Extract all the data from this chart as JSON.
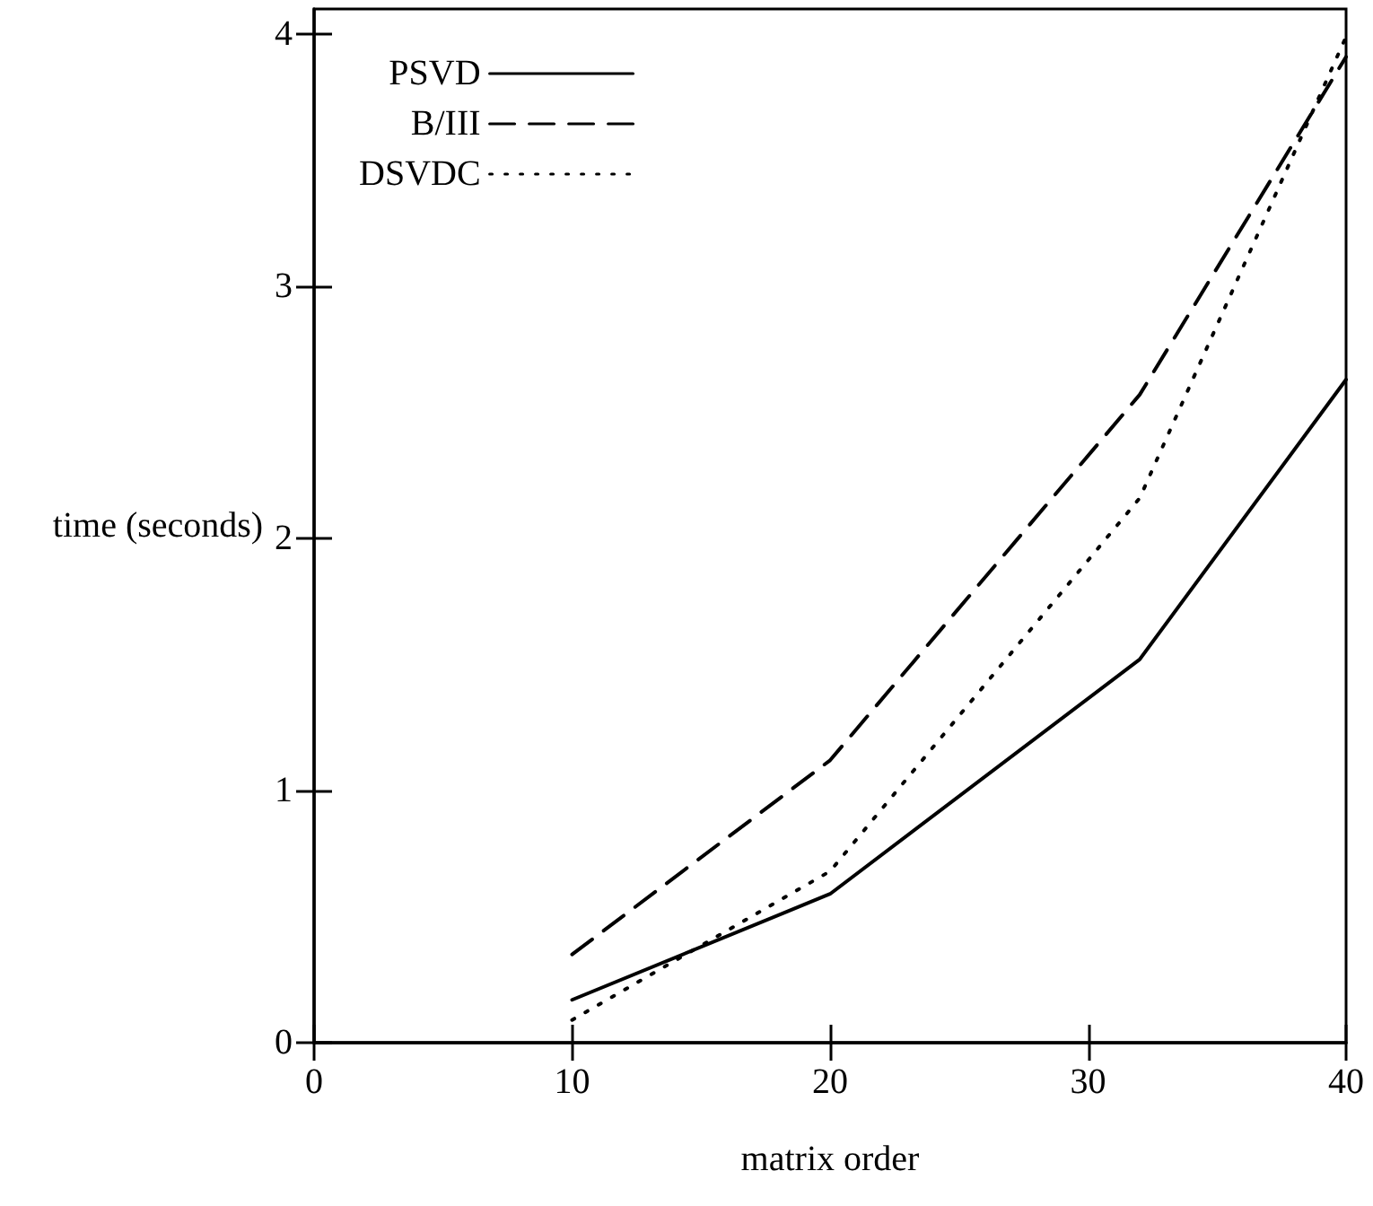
{
  "chart_data": {
    "type": "line",
    "xlabel": "matrix order",
    "ylabel": "time (seconds)",
    "xlim": [
      0,
      40
    ],
    "xticks": [
      0,
      10,
      20,
      30,
      40
    ],
    "ylim": [
      0,
      4.1
    ],
    "yticks": [
      0,
      1,
      2,
      3,
      4
    ],
    "grid": false,
    "legend": "top left",
    "marker": "none",
    "series": [
      {
        "name": "PSVD",
        "color": "#000000",
        "line_style": "solid",
        "x": [
          10,
          20,
          32,
          40
        ],
        "values": [
          0.17,
          0.59,
          1.52,
          2.63
        ]
      },
      {
        "name": "B/III",
        "color": "#000000",
        "line_style": "dashed",
        "x": [
          10,
          20,
          32,
          40
        ],
        "values": [
          0.35,
          1.12,
          2.57,
          3.91
        ]
      },
      {
        "name": "DSVDC",
        "color": "#000000",
        "line_style": "dotted",
        "x": [
          10,
          20,
          32,
          40
        ],
        "values": [
          0.09,
          0.68,
          2.16,
          3.99
        ]
      }
    ]
  }
}
